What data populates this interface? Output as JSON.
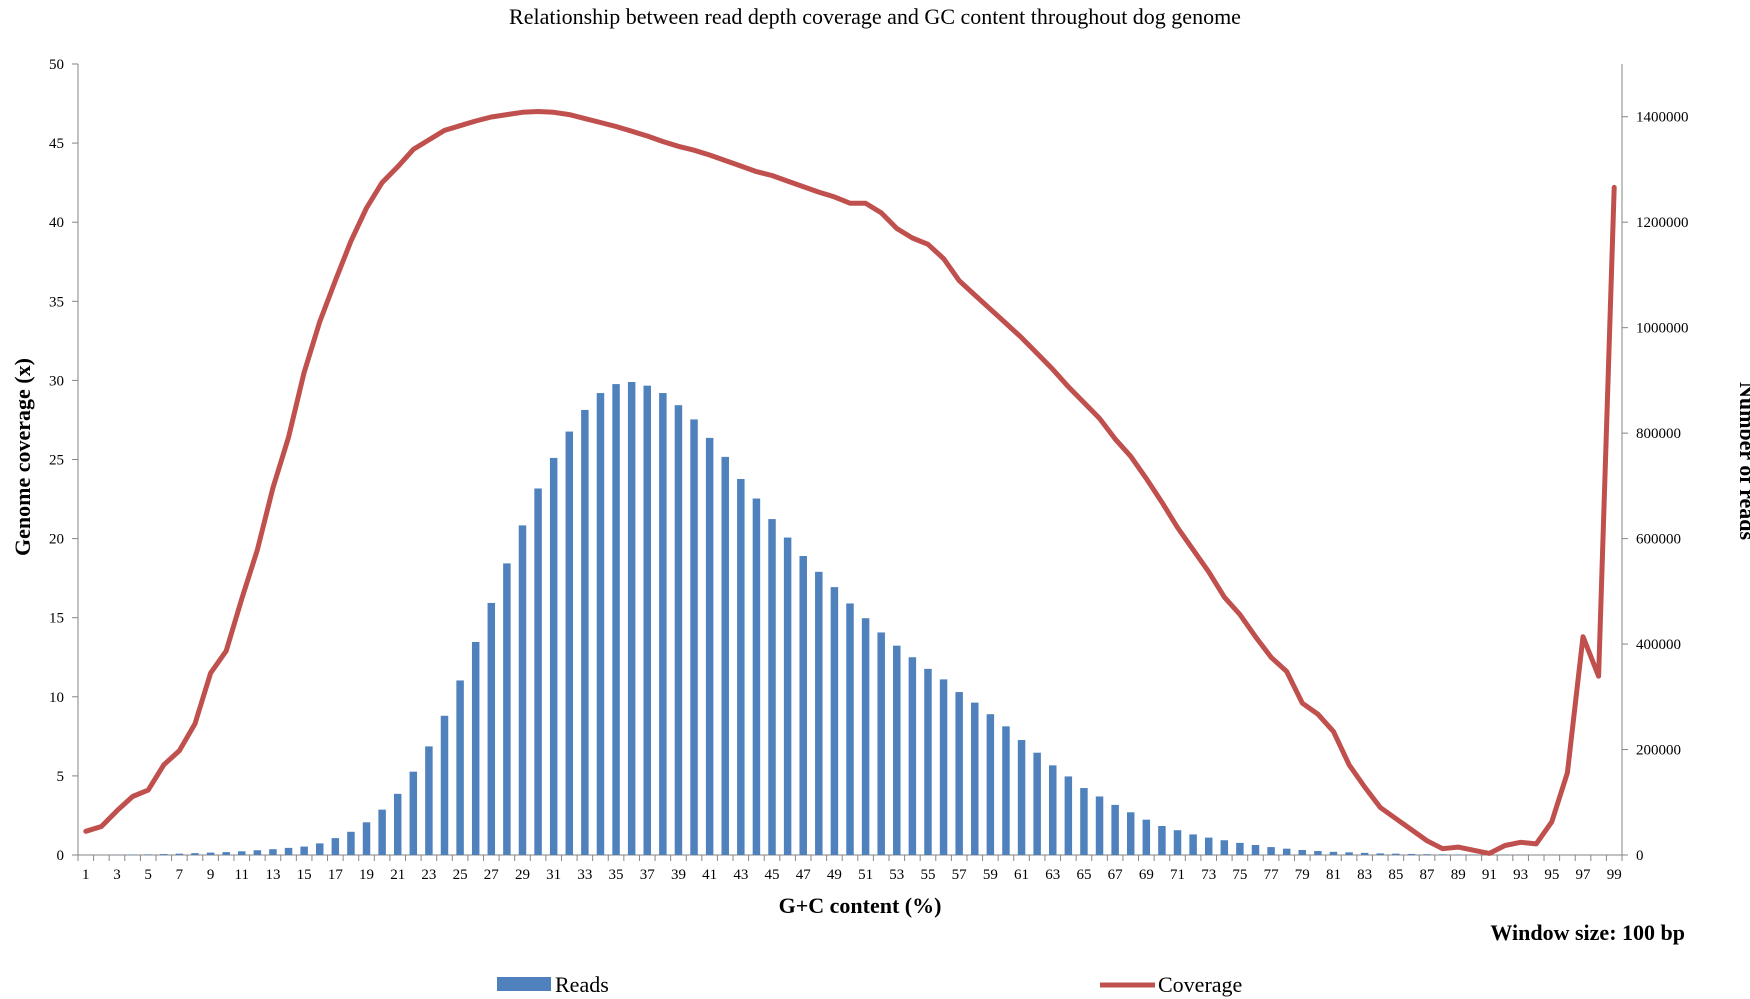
{
  "chart_data": {
    "type": "bar+line",
    "title": "Relationship between read depth coverage and GC content throughout dog genome",
    "xlabel": "G+C content (%)",
    "ylabel_left": "Genome coverage (x)",
    "ylabel_right": "Number of reads",
    "annotation": "Window size: 100 bp",
    "ylim_left": [
      0,
      50
    ],
    "yticks_left": [
      "0",
      "5",
      "10",
      "15",
      "20",
      "25",
      "30",
      "35",
      "40",
      "45",
      "50"
    ],
    "ylim_right": [
      0,
      1500000
    ],
    "yticks_right": [
      "0",
      "200000",
      "400000",
      "600000",
      "800000",
      "1000000",
      "1200000",
      "1400000"
    ],
    "x_categories": [
      1,
      2,
      3,
      4,
      5,
      6,
      7,
      8,
      9,
      10,
      11,
      12,
      13,
      14,
      15,
      16,
      17,
      18,
      19,
      20,
      21,
      22,
      23,
      24,
      25,
      26,
      27,
      28,
      29,
      30,
      31,
      32,
      33,
      34,
      35,
      36,
      37,
      38,
      39,
      40,
      41,
      42,
      43,
      44,
      45,
      46,
      47,
      48,
      49,
      50,
      51,
      52,
      53,
      54,
      55,
      56,
      57,
      58,
      59,
      60,
      61,
      62,
      63,
      64,
      65,
      66,
      67,
      68,
      69,
      70,
      71,
      72,
      73,
      74,
      75,
      76,
      77,
      78,
      79,
      80,
      81,
      82,
      83,
      84,
      85,
      86,
      87,
      88,
      89,
      90,
      91,
      92,
      93,
      94,
      95,
      96,
      97,
      98,
      99
    ],
    "x_tick_labels": [
      "1",
      "3",
      "5",
      "7",
      "9",
      "11",
      "13",
      "15",
      "17",
      "19",
      "21",
      "23",
      "25",
      "27",
      "29",
      "31",
      "33",
      "35",
      "37",
      "39",
      "41",
      "43",
      "45",
      "47",
      "49",
      "51",
      "53",
      "55",
      "57",
      "59",
      "61",
      "63",
      "65",
      "67",
      "69",
      "71",
      "73",
      "75",
      "77",
      "79",
      "81",
      "83",
      "85",
      "87",
      "89",
      "91",
      "93",
      "95",
      "97",
      "99"
    ],
    "legend_position": "bottom",
    "series": [
      {
        "name": "Reads",
        "type": "bar",
        "axis": "right",
        "color": "#4f81bd",
        "values": [
          200,
          300,
          500,
          800,
          1200,
          1800,
          2500,
          3500,
          4500,
          5500,
          7000,
          9000,
          11000,
          13500,
          16000,
          22000,
          32000,
          44000,
          62000,
          86000,
          116000,
          158000,
          206000,
          264000,
          331000,
          404000,
          478000,
          553000,
          625000,
          695000,
          753000,
          803000,
          844000,
          876000,
          893000,
          897000,
          890000,
          876000,
          853000,
          826000,
          791000,
          755000,
          713000,
          676000,
          637000,
          602000,
          567000,
          537000,
          508000,
          477000,
          449000,
          422000,
          397000,
          375000,
          353000,
          333000,
          309000,
          289000,
          267000,
          244000,
          218000,
          194000,
          170000,
          149000,
          127000,
          111000,
          95000,
          81000,
          67000,
          55000,
          47000,
          39000,
          33000,
          28000,
          23000,
          19000,
          15000,
          12000,
          9500,
          7500,
          6000,
          5000,
          4000,
          3000,
          2500,
          2000,
          1500,
          1200,
          1000,
          800,
          600,
          500,
          400,
          300,
          250,
          200,
          150,
          100,
          80
        ]
      },
      {
        "name": "Coverage",
        "type": "line",
        "axis": "left",
        "color": "#c0504d",
        "values": [
          1.5,
          1.8,
          2.8,
          3.7,
          4.1,
          5.7,
          6.6,
          8.3,
          11.5,
          12.9,
          16.2,
          19.3,
          23.2,
          26.4,
          30.5,
          33.7,
          36.3,
          38.8,
          40.9,
          42.5,
          43.5,
          44.6,
          45.2,
          45.8,
          46.1,
          46.4,
          46.65,
          46.8,
          46.95,
          47.0,
          46.95,
          46.8,
          46.55,
          46.3,
          46.05,
          45.75,
          45.45,
          45.1,
          44.8,
          44.55,
          44.25,
          43.9,
          43.55,
          43.2,
          42.95,
          42.6,
          42.25,
          41.9,
          41.6,
          41.2,
          41.2,
          40.6,
          39.6,
          39.0,
          38.6,
          37.7,
          36.3,
          35.4,
          34.5,
          33.6,
          32.7,
          31.7,
          30.7,
          29.6,
          28.6,
          27.6,
          26.3,
          25.2,
          23.8,
          22.3,
          20.7,
          19.3,
          17.9,
          16.3,
          15.2,
          13.8,
          12.5,
          11.6,
          9.6,
          8.9,
          7.8,
          5.7,
          4.3,
          3.0,
          2.3,
          1.6,
          0.9,
          0.4,
          0.5,
          0.3,
          0.1,
          0.6,
          0.8,
          0.7,
          2.1,
          5.2,
          13.8,
          11.3,
          42.2
        ]
      }
    ]
  }
}
